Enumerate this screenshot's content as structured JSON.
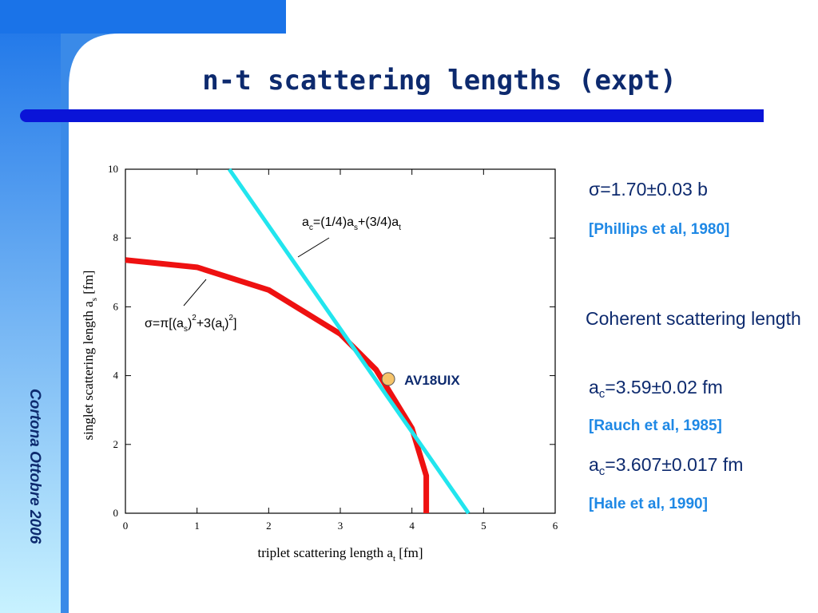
{
  "slide": {
    "title": "n-t scattering lengths (expt)",
    "side_text": "Cortona Ottobre 2006",
    "notes": {
      "sigma": "σ=1.70±0.03 b",
      "ref1": "[Phillips et al, 1980]",
      "coherent": "Coherent scattering length",
      "ac1": [
        "a",
        "c",
        "=3.59±0.02 fm"
      ],
      "ref2": "[Rauch et al, 1985]",
      "ac2": [
        "a",
        "c",
        "=3.607±0.017 fm"
      ],
      "ref3": "[Hale et al, 1990]"
    }
  },
  "chart_data": {
    "type": "line",
    "x_label": [
      "triplet scattering length a",
      "t",
      " [fm]"
    ],
    "y_label": [
      "singlet scattering length a",
      "s",
      " [fm]"
    ],
    "annotations": {
      "line_formula": [
        "a",
        "c",
        "=(1/4)a",
        "s",
        "+(3/4)a",
        "t"
      ],
      "curve_formula": [
        "σ=π[(a",
        "s",
        ")",
        "2",
        "+3(a",
        "t",
        ")",
        "2",
        "]"
      ]
    },
    "xlim": [
      0,
      6
    ],
    "ylim": [
      0,
      10
    ],
    "xticks": [
      0,
      1,
      2,
      3,
      4,
      5,
      6
    ],
    "yticks": [
      0,
      2,
      4,
      6,
      8,
      10
    ],
    "series": [
      {
        "color": "#ee1111",
        "x": [
          0,
          1,
          2,
          3,
          3.5,
          4,
          4.2,
          4.2
        ],
        "values": [
          7.36,
          7.15,
          6.49,
          5.21,
          4.17,
          2.47,
          1.09,
          0
        ]
      },
      {
        "color": "#22e5ee",
        "x": [
          1.45,
          4.79
        ],
        "values": [
          10,
          0
        ]
      },
      {
        "name": "AV18UIX",
        "color": "#f6c46a",
        "x": [
          3.67
        ],
        "values": [
          3.9
        ]
      }
    ]
  }
}
